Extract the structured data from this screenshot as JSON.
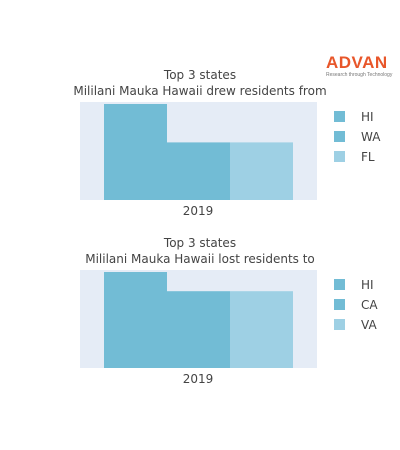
{
  "brand": {
    "name": "ADVAN",
    "tagline": "Research through Technology",
    "color": "#e8562a"
  },
  "colors": {
    "plot_bg": "#e5ecf6",
    "bar_colors": [
      "#72bcd5",
      "#72bcd5",
      "#9ed0e4"
    ]
  },
  "chart_data": [
    {
      "type": "bar",
      "title": "Top 3 states",
      "subtitle": "Mililani Mauka Hawaii drew residents from",
      "categories": [
        "2019"
      ],
      "series": [
        {
          "name": "HI",
          "values": [
            1.0
          ]
        },
        {
          "name": "WA",
          "values": [
            0.6
          ]
        },
        {
          "name": "FL",
          "values": [
            0.6
          ]
        }
      ],
      "ylim": [
        0,
        1.0
      ],
      "legend": "right",
      "grid": false
    },
    {
      "type": "bar",
      "title": "Top 3 states",
      "subtitle": "Mililani Mauka Hawaii lost residents to",
      "categories": [
        "2019"
      ],
      "series": [
        {
          "name": "HI",
          "values": [
            1.0
          ]
        },
        {
          "name": "CA",
          "values": [
            0.8
          ]
        },
        {
          "name": "VA",
          "values": [
            0.8
          ]
        }
      ],
      "ylim": [
        0,
        1.0
      ],
      "legend": "right",
      "grid": false
    }
  ]
}
